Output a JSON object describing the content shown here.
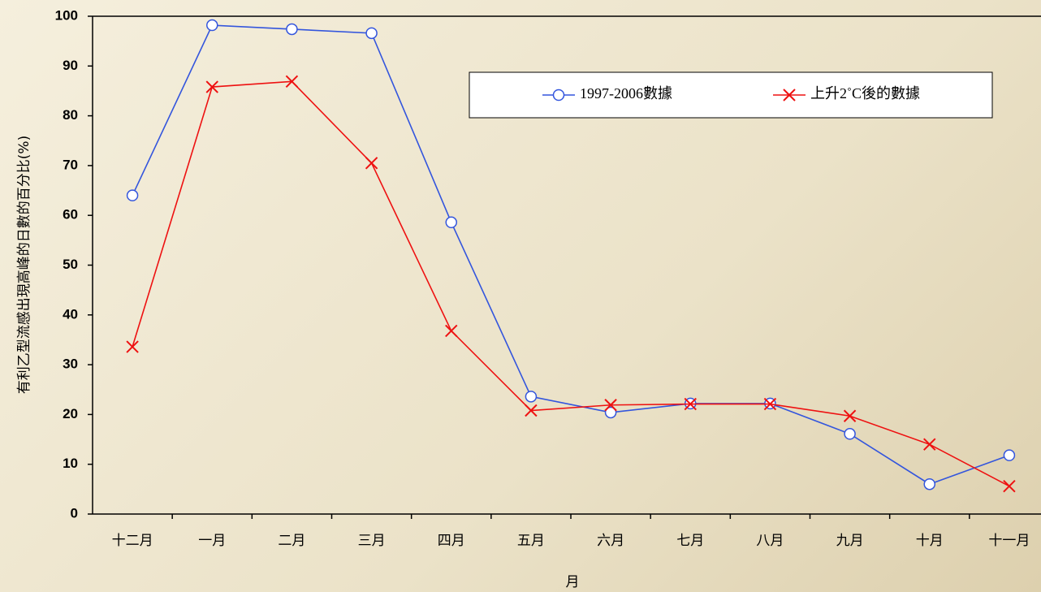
{
  "chart_data": {
    "type": "line",
    "categories": [
      "十二月",
      "一月",
      "二月",
      "三月",
      "四月",
      "五月",
      "六月",
      "七月",
      "八月",
      "九月",
      "十月",
      "十一月"
    ],
    "xlabel": "月",
    "ylabel": "有利乙型流感出現高峰的日數的百分比(%)",
    "series": [
      {
        "name": "1997-2006數據",
        "color": "#3355dd",
        "marker": "circle",
        "values": [
          64,
          98.2,
          97.4,
          96.6,
          58.6,
          23.6,
          20.4,
          22.2,
          22.2,
          16.1,
          6,
          11.8
        ]
      },
      {
        "name": "上升2˚C後的數據",
        "color": "#ee1111",
        "marker": "x",
        "values": [
          33.6,
          85.8,
          86.9,
          70.5,
          36.8,
          20.8,
          21.9,
          22.1,
          22.1,
          19.7,
          14,
          5.6
        ]
      }
    ],
    "ylim": [
      0,
      100
    ],
    "yticks": [
      0,
      10,
      20,
      30,
      40,
      50,
      60,
      70,
      80,
      90,
      100
    ],
    "legend": "upper right"
  }
}
